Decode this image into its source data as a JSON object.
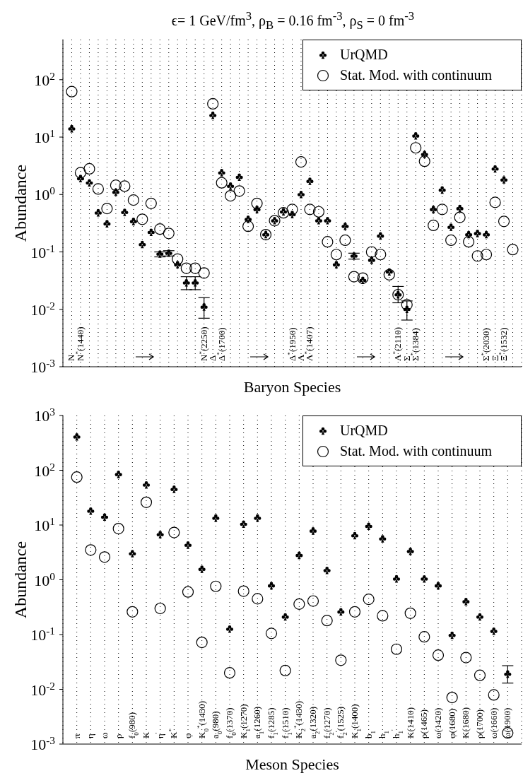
{
  "chart_data": [
    {
      "type": "scatter",
      "title": "ϵ= 1 GeV/fm$^{3}$, ρ$_{B}$ = 0.16 fm$^{-3}$, ρ$_{S}$ = 0 fm$^{-3}$",
      "xlabel": "Baryon Species",
      "ylabel": "Abundance",
      "categories": [
        "N",
        "N$^{*}$(1440)",
        null,
        null,
        null,
        null,
        null,
        null,
        null,
        null,
        null,
        null,
        null,
        null,
        null,
        "N$^{*}$(2250)",
        "Δ",
        "Δ$^{*}$(1700)",
        null,
        null,
        null,
        null,
        null,
        null,
        null,
        "Δ$^{*}$(1950)",
        "Λ",
        "Λ$^{*}$(1407)",
        null,
        null,
        null,
        null,
        null,
        null,
        null,
        null,
        null,
        "Λ$^{*}$(2110)",
        "Σ",
        "Σ$^{*}$(1384)",
        null,
        null,
        null,
        null,
        null,
        null,
        null,
        "Σ$^{*}$(2030)",
        "Ξ",
        "Ξ$^{*}$(1532)",
        null
      ],
      "series": [
        {
          "name": "UrQMD",
          "color": "#000000",
          "values": [
            14,
            1.9,
            1.6,
            0.48,
            0.31,
            1.1,
            0.49,
            0.34,
            0.135,
            0.22,
            0.092,
            0.095,
            0.06,
            0.029,
            0.029,
            0.011,
            24,
            2.4,
            1.4,
            2.0,
            0.37,
            0.55,
            0.2,
            0.35,
            0.5,
            0.45,
            1.0,
            1.7,
            0.35,
            0.35,
            0.06,
            0.28,
            0.085,
            0.032,
            0.072,
            0.19,
            0.045,
            0.018,
            0.01,
            10.5,
            5,
            0.55,
            1.2,
            0.27,
            0.57,
            0.2,
            0.21,
            0.2,
            2.8,
            1.8,
            null
          ],
          "errors": [
            null,
            null,
            null,
            null,
            null,
            null,
            null,
            null,
            null,
            null,
            [
              0.082,
              0.1
            ],
            [
              0.085,
              0.105
            ],
            null,
            [
              0.022,
              0.037
            ],
            [
              0.022,
              0.037
            ],
            [
              0.007,
              0.016
            ],
            null,
            null,
            null,
            null,
            null,
            null,
            null,
            null,
            null,
            null,
            null,
            null,
            null,
            null,
            null,
            null,
            [
              0.075,
              0.095
            ],
            null,
            null,
            null,
            null,
            [
              0.013,
              0.025
            ],
            [
              0.0065,
              0.014
            ],
            null,
            null,
            null,
            null,
            null,
            null,
            null,
            null,
            null,
            null,
            null,
            null
          ]
        },
        {
          "name": "Stat. Mod. with continuum",
          "color": "#000000",
          "marker": "circle",
          "values": [
            62,
            2.4,
            2.8,
            1.25,
            0.57,
            1.45,
            1.4,
            0.8,
            0.37,
            0.7,
            0.25,
            0.21,
            0.075,
            0.052,
            0.052,
            0.043,
            38,
            1.6,
            0.95,
            1.15,
            0.28,
            0.7,
            0.2,
            0.35,
            0.48,
            0.55,
            3.7,
            0.55,
            0.5,
            0.15,
            0.09,
            0.16,
            0.037,
            0.035,
            0.1,
            0.09,
            0.04,
            0.018,
            0.012,
            6.5,
            3.8,
            0.29,
            0.55,
            0.16,
            0.4,
            0.15,
            0.085,
            0.09,
            0.73,
            0.34,
            0.11
          ]
        }
      ],
      "log": true,
      "ylim": [
        0.001,
        500
      ],
      "yticks": [
        {
          "value": 0.001,
          "label": "10$^{-3}$"
        },
        {
          "value": 0.01,
          "label": "10$^{-2}$"
        },
        {
          "value": 0.1,
          "label": "10$^{-1}$"
        },
        {
          "value": 1,
          "label": "10$^{0}$"
        },
        {
          "value": 10,
          "label": "10$^{1}$"
        },
        {
          "value": 100,
          "label": "10$^{2}$"
        }
      ],
      "grid": "x",
      "legend": "top right"
    },
    {
      "type": "scatter",
      "xlabel": "Meson Species",
      "ylabel": "Abundance",
      "categories": [
        "π",
        "η",
        "ω",
        "ρ",
        "f$_{0}$(980)",
        "K",
        "η$^{'}$",
        "K$^{*}$",
        "φ",
        "K$_{0}$$^{*}$(1430)",
        "a$_{0}$(980)",
        "f$_{0}$(1370)",
        "K$_{1}$(1270)",
        "a$_{1}$(1260)",
        "f$_{1}$(1285)",
        "f$_{1}$(1510)",
        "K$_{2}$$^{*}$(1430)",
        "a$_{2}$(1320)",
        "f$_{2}$(1270)",
        "f$_{2}$$^{'}$(1525)",
        "K$_{1}$(1400)",
        "b$_{1}$",
        "h$_{1}$",
        "h$_{1}$$^{'}$",
        "K(1410)",
        "ρ(1465)",
        "ω(1420)",
        "φ(1680)",
        "K(1680)",
        "ρ(1700)",
        "ω(1660)",
        "ω(1900)"
      ],
      "series": [
        {
          "name": "UrQMD",
          "color": "#000000",
          "values": [
            407,
            18,
            14,
            84,
            3.0,
            54,
            6.7,
            45,
            4.3,
            1.56,
            13.4,
            0.126,
            10.4,
            13.4,
            0.78,
            0.21,
            2.8,
            7.8,
            1.48,
            0.26,
            6.4,
            9.5,
            5.6,
            1.04,
            3.3,
            1.04,
            0.78,
            0.097,
            0.4,
            0.21,
            0.115,
            0.019
          ],
          "errors": [
            null,
            null,
            null,
            null,
            null,
            null,
            null,
            null,
            null,
            null,
            null,
            null,
            null,
            null,
            null,
            null,
            null,
            null,
            null,
            null,
            null,
            null,
            null,
            null,
            null,
            null,
            null,
            null,
            null,
            null,
            null,
            [
              0.013,
              0.027
            ]
          ]
        },
        {
          "name": "Stat. Mod. with continuum",
          "color": "#000000",
          "marker": "circle",
          "values": [
            75,
            3.5,
            2.6,
            8.6,
            0.26,
            26,
            0.3,
            7.3,
            0.6,
            0.072,
            0.76,
            0.02,
            0.62,
            0.45,
            0.105,
            0.022,
            0.36,
            0.41,
            0.18,
            0.034,
            0.26,
            0.44,
            0.22,
            0.054,
            0.245,
            0.091,
            0.042,
            0.0071,
            0.038,
            0.018,
            0.0079,
            0.0016
          ]
        }
      ],
      "log": true,
      "ylim": [
        0.001,
        1000
      ],
      "yticks": [
        {
          "value": 0.001,
          "label": "10$^{-3}$"
        },
        {
          "value": 0.01,
          "label": "10$^{-2}$"
        },
        {
          "value": 0.1,
          "label": "10$^{-1}$"
        },
        {
          "value": 1,
          "label": "10$^{0}$"
        },
        {
          "value": 10,
          "label": "10$^{1}$"
        },
        {
          "value": 100,
          "label": "10$^{2}$"
        },
        {
          "value": 1000,
          "label": "10$^{3}$"
        }
      ],
      "grid": "x",
      "legend": "top right"
    }
  ]
}
